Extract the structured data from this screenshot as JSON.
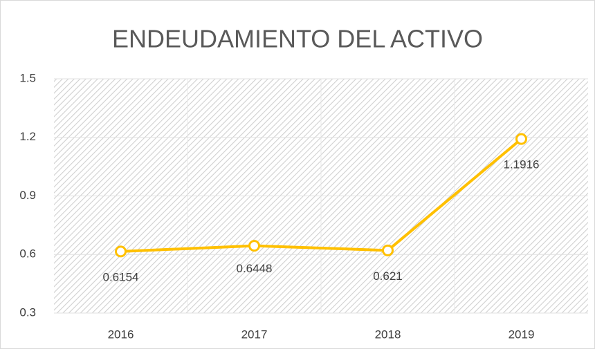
{
  "chart_data": {
    "type": "line",
    "title": "ENDEUDAMIENTO DEL ACTIVO",
    "categories": [
      "2016",
      "2017",
      "2018",
      "2019"
    ],
    "values": [
      0.6154,
      0.6448,
      0.621,
      1.1916
    ],
    "color": "#FFC000",
    "ylim": [
      0.3,
      1.5
    ],
    "yticks": [
      0.3,
      0.6,
      0.9,
      1.2,
      1.5
    ],
    "grid": true
  }
}
